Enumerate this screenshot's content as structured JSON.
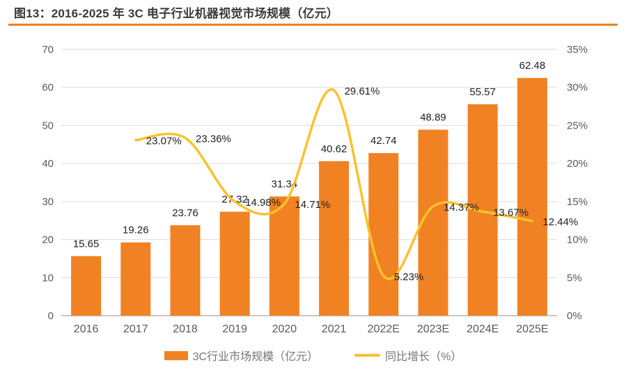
{
  "header": {
    "figure_label": "图13：",
    "title": "2016-2025 年 3C 电子行业机器视觉市场规模（亿元）",
    "accent_color": "#EE7F22"
  },
  "legend": {
    "bar_label": "3C行业市场规模（亿元）",
    "line_label": "同比增长（%）"
  },
  "chart_data": {
    "type": "bar",
    "subtype": "bar+line-combo",
    "title": "图13：2016-2025 年 3C 电子行业机器视觉市场规模（亿元）",
    "categories": [
      "2016",
      "2017",
      "2018",
      "2019",
      "2020",
      "2021",
      "2022E",
      "2023E",
      "2024E",
      "2025E"
    ],
    "series": [
      {
        "name": "3C行业市场规模（亿元）",
        "type": "bar",
        "axis": "left",
        "color": "#F08223",
        "values": [
          15.65,
          19.26,
          23.76,
          27.32,
          31.34,
          40.62,
          42.74,
          48.89,
          55.57,
          62.48
        ],
        "value_labels": [
          "15.65",
          "19.26",
          "23.76",
          "27.32",
          "31.34",
          "40.62",
          "42.74",
          "48.89",
          "55.57",
          "62.48"
        ]
      },
      {
        "name": "同比增长（%）",
        "type": "line",
        "axis": "right",
        "color": "#FFC02E",
        "smooth": true,
        "values": [
          null,
          23.07,
          23.36,
          14.98,
          14.71,
          29.61,
          5.23,
          14.37,
          13.67,
          12.44
        ],
        "value_labels": [
          null,
          "23.07%",
          "23.36%",
          "14.98%",
          "14.71%",
          "29.61%",
          "5.23%",
          "14.37%",
          "13.67%",
          "12.44%"
        ]
      }
    ],
    "left_axis": {
      "min": 0,
      "max": 70,
      "step": 10,
      "ticks": [
        "0",
        "10",
        "20",
        "30",
        "40",
        "50",
        "60",
        "70"
      ]
    },
    "right_axis": {
      "min": 0,
      "max": 35,
      "step": 5,
      "ticks": [
        "0%",
        "5%",
        "10%",
        "15%",
        "20%",
        "25%",
        "30%",
        "35%"
      ]
    },
    "grid": true,
    "legend_position": "bottom"
  }
}
